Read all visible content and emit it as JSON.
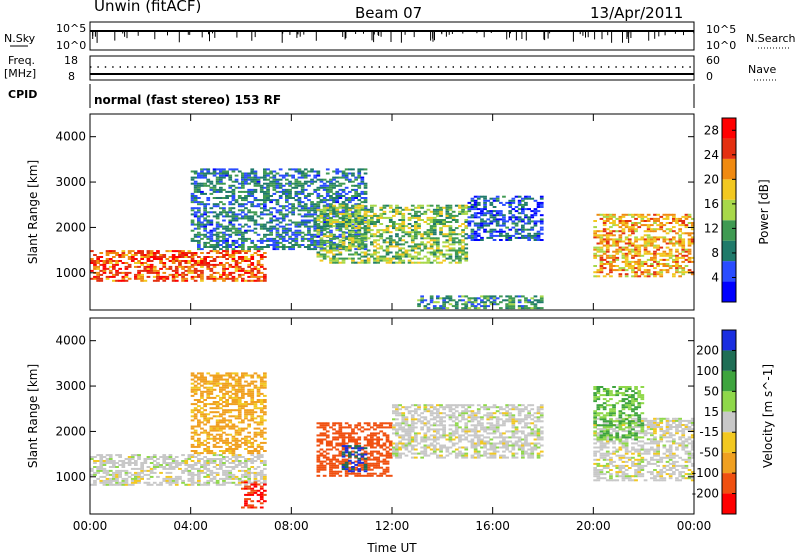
{
  "header": {
    "station": "Unwin (fitACF)",
    "beam": "Beam 07",
    "date": "13/Apr/2011"
  },
  "top_panels": {
    "nsky": {
      "left_label": "N.Sky",
      "left_ticks": [
        "10^5",
        "10^0"
      ],
      "right_label": "N.Search",
      "right_ticks": [
        "10^5",
        "10^0"
      ]
    },
    "freq": {
      "left_label_line1": "Freq.",
      "left_label_line2": "[MHz]",
      "left_ticks": [
        "18",
        "8"
      ],
      "right_label": "Nave",
      "right_ticks": [
        "60",
        "0"
      ]
    },
    "cpid": {
      "label": "CPID",
      "mode_text": "normal (fast stereo) 153 RF"
    }
  },
  "chart_data": [
    {
      "type": "heatmap",
      "title": "",
      "xlabel": "",
      "ylabel": "Slant Range [km]",
      "x_range_hours": [
        0,
        24
      ],
      "x_tick_labels": [
        "00:00",
        "04:00",
        "08:00",
        "12:00",
        "16:00",
        "20:00",
        "00:00"
      ],
      "ylim": [
        180,
        4500
      ],
      "y_ticks": [
        1000,
        2000,
        3000,
        4000
      ],
      "colorbar": {
        "label": "Power [dB]",
        "ticks": [
          4,
          8,
          12,
          16,
          20,
          24,
          28
        ],
        "range": [
          0,
          30
        ],
        "colors": [
          "#0000ff",
          "#2a4cff",
          "#1f7a6a",
          "#3f9a52",
          "#a8d84a",
          "#f2c820",
          "#f08a10",
          "#e43010",
          "#ff0000"
        ]
      },
      "legend_position": "right",
      "value_summary": [
        {
          "x_hours": [
            0,
            7
          ],
          "range_km": [
            800,
            1500
          ],
          "dB": 24
        },
        {
          "x_hours": [
            4,
            11
          ],
          "range_km": [
            1500,
            3300
          ],
          "dB": 8
        },
        {
          "x_hours": [
            9,
            15
          ],
          "range_km": [
            1200,
            2500
          ],
          "dB": 14
        },
        {
          "x_hours": [
            15,
            18
          ],
          "range_km": [
            1700,
            2700
          ],
          "dB": 6
        },
        {
          "x_hours": [
            20,
            24
          ],
          "range_km": [
            900,
            2300
          ],
          "dB": 20
        },
        {
          "x_hours": [
            13,
            18
          ],
          "range_km": [
            200,
            500
          ],
          "dB": 10
        }
      ]
    },
    {
      "type": "heatmap",
      "title": "",
      "xlabel": "Time UT",
      "ylabel": "Slant Range [km]",
      "x_range_hours": [
        0,
        24
      ],
      "x_tick_labels": [
        "00:00",
        "04:00",
        "08:00",
        "12:00",
        "16:00",
        "20:00",
        "00:00"
      ],
      "ylim": [
        180,
        4500
      ],
      "y_ticks": [
        1000,
        2000,
        3000,
        4000
      ],
      "colorbar": {
        "label": "Velocity [m s^-1]",
        "ticks": [
          200,
          100,
          50,
          15,
          -15,
          -50,
          -100,
          -200
        ],
        "colors": [
          "#1a2ee0",
          "#1f6e55",
          "#3ea43e",
          "#8fd84a",
          "#c8c8c8",
          "#f2c820",
          "#f0a020",
          "#f05010",
          "#ff0000"
        ]
      },
      "legend_position": "right",
      "value_summary": [
        {
          "x_hours": [
            0,
            7
          ],
          "range_km": [
            800,
            1500
          ],
          "velocity": 0
        },
        {
          "x_hours": [
            4,
            7
          ],
          "range_km": [
            1500,
            3300
          ],
          "velocity": -60
        },
        {
          "x_hours": [
            6,
            7
          ],
          "range_km": [
            300,
            900
          ],
          "velocity": -200
        },
        {
          "x_hours": [
            9,
            12
          ],
          "range_km": [
            1000,
            2200
          ],
          "velocity": -150
        },
        {
          "x_hours": [
            10,
            11
          ],
          "range_km": [
            1100,
            1700
          ],
          "velocity": 200
        },
        {
          "x_hours": [
            12,
            18
          ],
          "range_km": [
            1400,
            2600
          ],
          "velocity": 0
        },
        {
          "x_hours": [
            20,
            24
          ],
          "range_km": [
            900,
            2300
          ],
          "velocity": 0
        },
        {
          "x_hours": [
            20,
            22
          ],
          "range_km": [
            1800,
            3000
          ],
          "velocity": 50
        }
      ]
    }
  ]
}
